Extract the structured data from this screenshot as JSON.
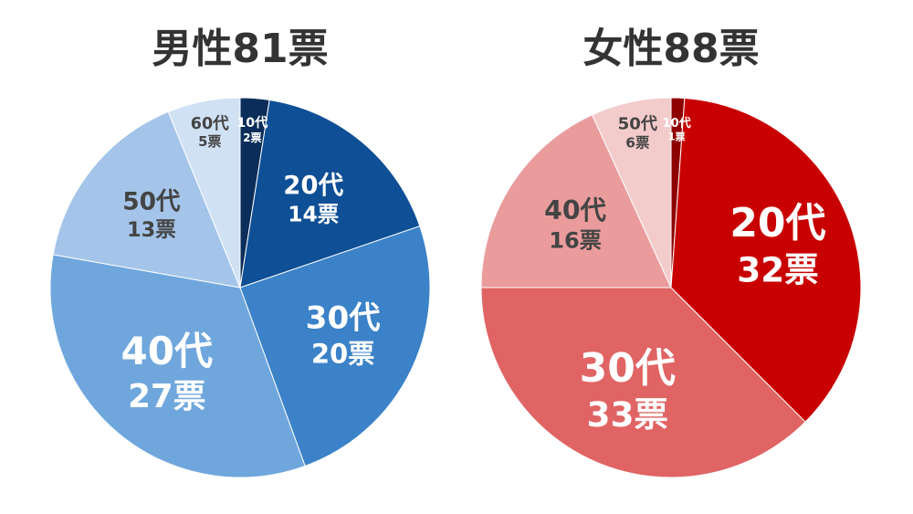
{
  "chart_data": [
    {
      "type": "pie",
      "title": "男性81票",
      "categories": [
        "10代",
        "20代",
        "30代",
        "40代",
        "50代",
        "60代"
      ],
      "values": [
        2,
        14,
        20,
        27,
        13,
        5
      ],
      "value_labels": [
        "2票",
        "14票",
        "20票",
        "27票",
        "13票",
        "5票"
      ],
      "colors": [
        "#0b2d59",
        "#0f4f96",
        "#3b82c8",
        "#6fa7dd",
        "#a4c5e9",
        "#d0e1f4"
      ]
    },
    {
      "type": "pie",
      "title": "女性88票",
      "categories": [
        "10代",
        "20代",
        "30代",
        "40代",
        "50代"
      ],
      "values": [
        1,
        32,
        33,
        16,
        6
      ],
      "value_labels": [
        "1票",
        "32票",
        "33票",
        "16票",
        "6票"
      ],
      "colors": [
        "#8e0000",
        "#c90000",
        "#e06464",
        "#ea9c9c",
        "#f3cbcb"
      ]
    }
  ]
}
